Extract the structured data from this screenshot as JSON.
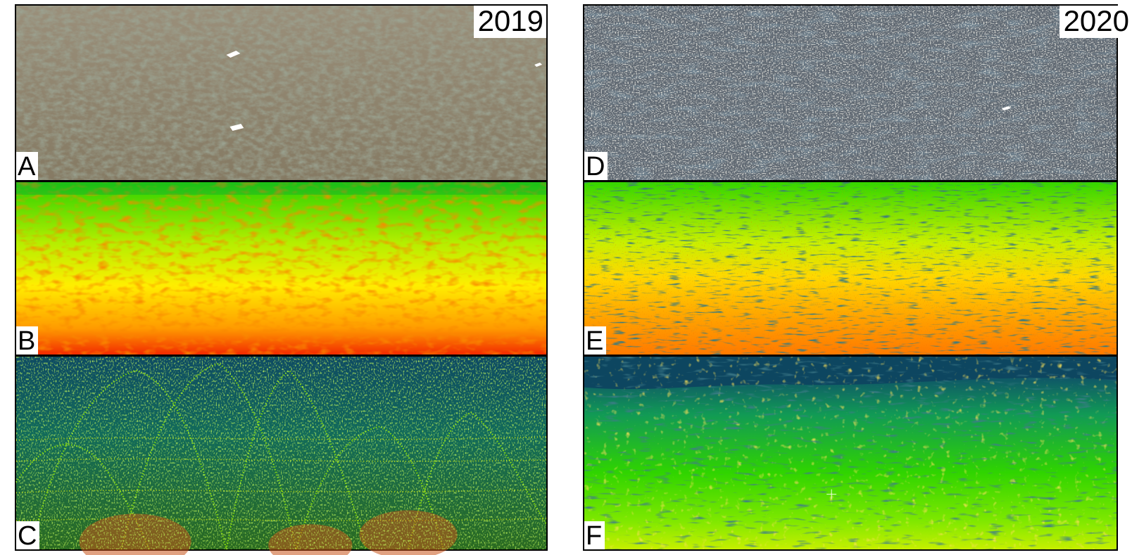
{
  "left": {
    "year": "2019",
    "panels": [
      {
        "label": "A",
        "view": "photograph-view"
      },
      {
        "label": "B",
        "view": "elevation-map-view"
      },
      {
        "label": "C",
        "view": "point-cloud-view"
      }
    ]
  },
  "right": {
    "year": "2020",
    "panels": [
      {
        "label": "D",
        "view": "photograph-view"
      },
      {
        "label": "E",
        "view": "elevation-map-view"
      },
      {
        "label": "F",
        "view": "point-cloud-view"
      }
    ]
  },
  "colors": {
    "sand": "#8f8570",
    "vegetation": "#5e6b55",
    "deep_teal": "#0d4660",
    "green": "#2fd400",
    "yellow": "#f0f000",
    "orange": "#ff8c00",
    "red": "#e41a00"
  }
}
